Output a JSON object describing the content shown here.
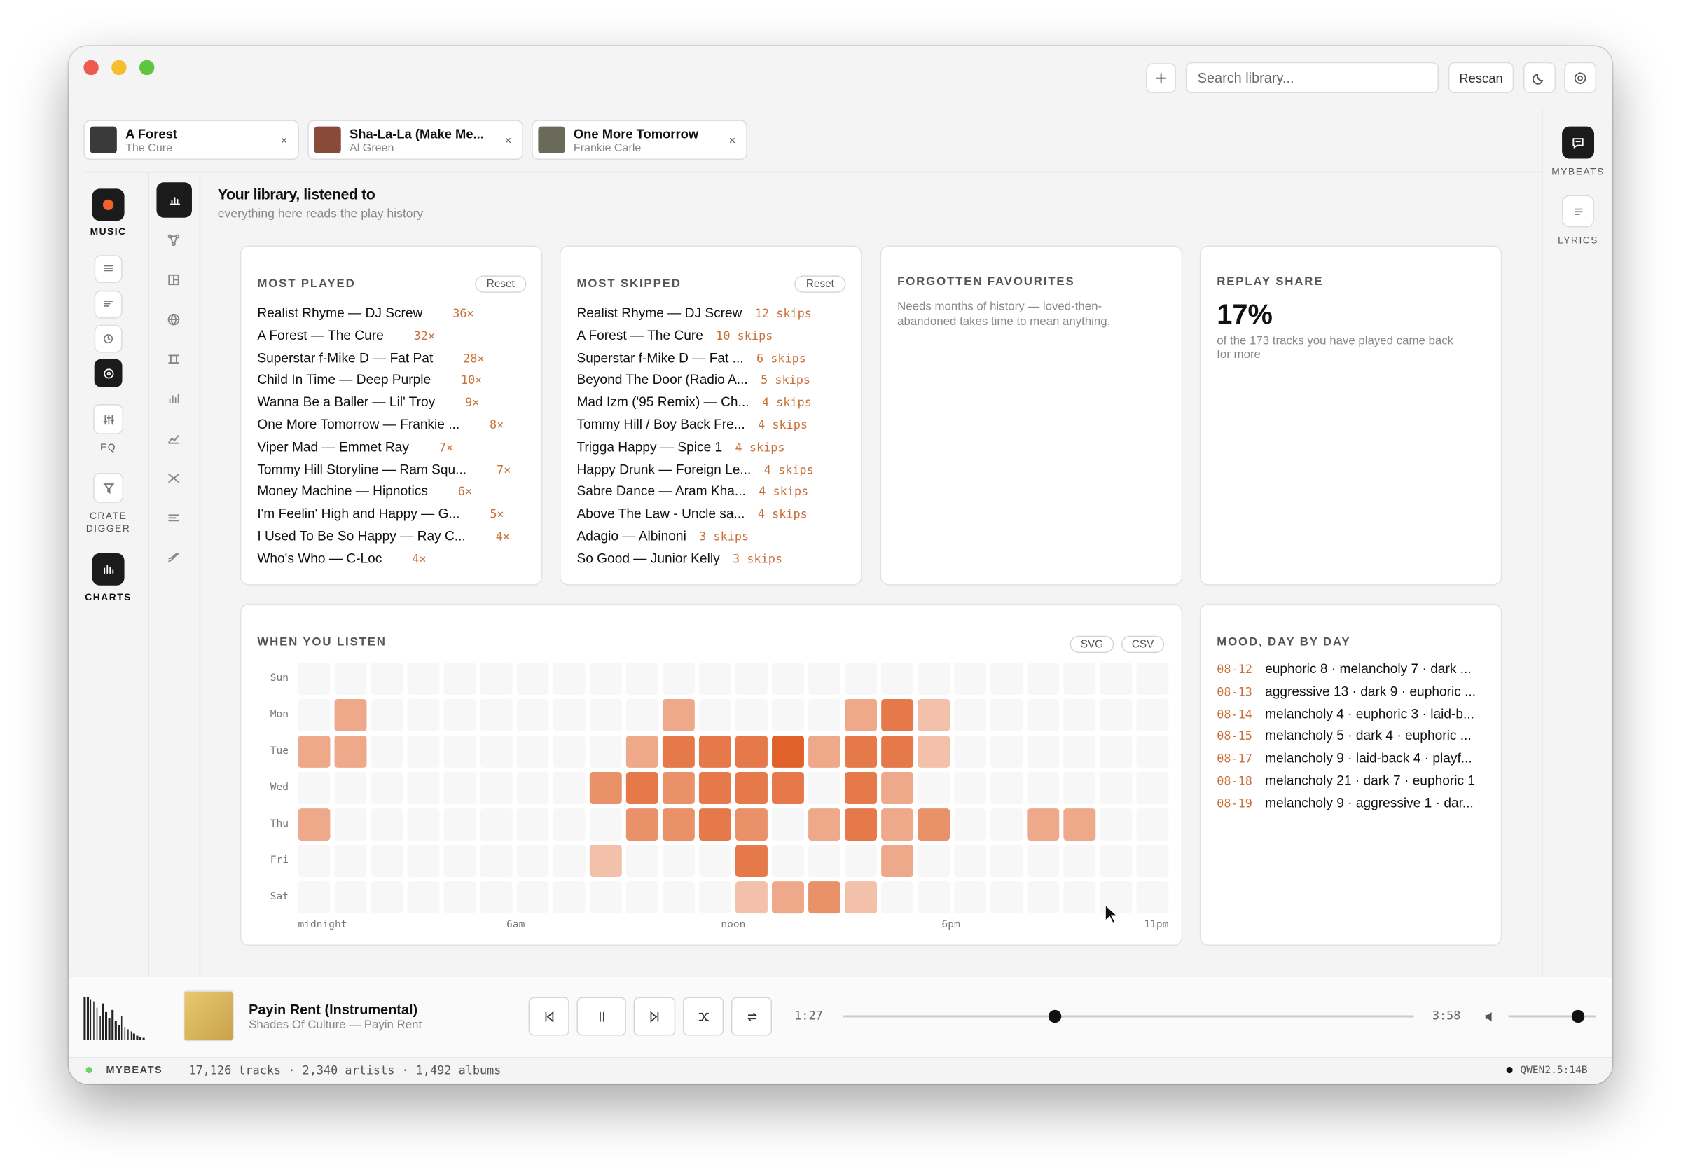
{
  "toolbar": {
    "search_placeholder": "Search library...",
    "rescan": "Rescan"
  },
  "tabs": [
    {
      "title": "A Forest",
      "subtitle": "The Cure"
    },
    {
      "title": "Sha-La-La (Make Me...",
      "subtitle": "Al Green"
    },
    {
      "title": "One More Tomorrow",
      "subtitle": "Frankie Carle"
    }
  ],
  "left_nav": {
    "music": "MUSIC",
    "eq": "EQ",
    "crate_digger": [
      "CRATE",
      "DIGGER"
    ],
    "charts": "CHARTS"
  },
  "right_nav": {
    "mybeats": "MYBEATS",
    "lyrics": "LYRICS"
  },
  "header": {
    "title": "Your library, listened to",
    "subtitle": "everything here reads the play history"
  },
  "most_played": {
    "title": "MOST PLAYED",
    "button": "Reset",
    "items": [
      {
        "name": "Realist Rhyme — DJ Screw",
        "count": "36×"
      },
      {
        "name": "A Forest — The Cure",
        "count": "32×"
      },
      {
        "name": "Superstar f-Mike D — Fat Pat",
        "count": "28×"
      },
      {
        "name": "Child In Time — Deep Purple",
        "count": "10×"
      },
      {
        "name": "Wanna Be a Baller — Lil' Troy",
        "count": "9×"
      },
      {
        "name": "One More Tomorrow — Frankie ...",
        "count": "8×"
      },
      {
        "name": "Viper Mad — Emmet Ray",
        "count": "7×"
      },
      {
        "name": "Tommy Hill Storyline — Ram Squ...",
        "count": "7×"
      },
      {
        "name": "Money Machine — Hipnotics",
        "count": "6×"
      },
      {
        "name": "I'm Feelin' High and Happy — G...",
        "count": "5×"
      },
      {
        "name": "I Used To Be So Happy — Ray C...",
        "count": "4×"
      },
      {
        "name": "Who's Who — C-Loc",
        "count": "4×"
      }
    ]
  },
  "most_skipped": {
    "title": "MOST SKIPPED",
    "button": "Reset",
    "items": [
      {
        "name": "Realist Rhyme — DJ Screw",
        "count": "12 skips"
      },
      {
        "name": "A Forest — The Cure",
        "count": "10 skips"
      },
      {
        "name": "Superstar f-Mike D — Fat ...",
        "count": "6 skips"
      },
      {
        "name": "Beyond The Door (Radio A...",
        "count": "5 skips"
      },
      {
        "name": "Mad Izm ('95 Remix) — Ch...",
        "count": "4 skips"
      },
      {
        "name": "Tommy Hill / Boy Back Fre...",
        "count": "4 skips"
      },
      {
        "name": "Trigga Happy — Spice 1",
        "count": "4 skips"
      },
      {
        "name": "Happy Drunk — Foreign Le...",
        "count": "4 skips"
      },
      {
        "name": "Sabre Dance — Aram Kha...",
        "count": "4 skips"
      },
      {
        "name": "Above The Law - Uncle sa...",
        "count": "4 skips"
      },
      {
        "name": "Adagio — Albinoni",
        "count": "3 skips"
      },
      {
        "name": "So Good — Junior Kelly",
        "count": "3 skips"
      }
    ]
  },
  "forgotten": {
    "title": "FORGOTTEN FAVOURITES",
    "text": [
      "Needs months of history — loved-then-",
      "abandoned takes time to mean anything."
    ]
  },
  "replay_share": {
    "title": "REPLAY SHARE",
    "value": "17%",
    "text": [
      "of the 173 tracks you have played came back",
      "for more"
    ]
  },
  "when_you_listen": {
    "title": "WHEN YOU LISTEN",
    "buttons": [
      "SVG",
      "CSV"
    ],
    "color": "#e0622a",
    "days": [
      "Sun",
      "Mon",
      "Tue",
      "Wed",
      "Thu",
      "Fri",
      "Sat"
    ],
    "hour_labels": [
      "midnight",
      "6am",
      "noon",
      "6pm",
      "11pm"
    ],
    "levels": [
      [
        0,
        0,
        0,
        0,
        0,
        0,
        0,
        0,
        0,
        0,
        0,
        0,
        0,
        0,
        0,
        0,
        0,
        0,
        0,
        0,
        0,
        0,
        0,
        0
      ],
      [
        0,
        2,
        0,
        0,
        0,
        0,
        0,
        0,
        0,
        0,
        2,
        0,
        0,
        0,
        0,
        2,
        4,
        1,
        0,
        0,
        0,
        0,
        0,
        0
      ],
      [
        2,
        2,
        0,
        0,
        0,
        0,
        0,
        0,
        0,
        2,
        4,
        4,
        4,
        5,
        2,
        4,
        4,
        1,
        0,
        0,
        0,
        0,
        0,
        0
      ],
      [
        0,
        0,
        0,
        0,
        0,
        0,
        0,
        0,
        3,
        4,
        3,
        4,
        4,
        4,
        0,
        4,
        2,
        0,
        0,
        0,
        0,
        0,
        0,
        0
      ],
      [
        2,
        0,
        0,
        0,
        0,
        0,
        0,
        0,
        0,
        3,
        3,
        4,
        3,
        0,
        2,
        4,
        2,
        3,
        0,
        0,
        2,
        2,
        0,
        0
      ],
      [
        0,
        0,
        0,
        0,
        0,
        0,
        0,
        0,
        1,
        0,
        0,
        0,
        4,
        0,
        0,
        0,
        2,
        0,
        0,
        0,
        0,
        0,
        0,
        0
      ],
      [
        0,
        0,
        0,
        0,
        0,
        0,
        0,
        0,
        0,
        0,
        0,
        0,
        1,
        2,
        3,
        1,
        0,
        0,
        0,
        0,
        0,
        0,
        0,
        0
      ]
    ],
    "max_level": 5
  },
  "mood": {
    "title": "MOOD, DAY BY DAY",
    "items": [
      {
        "date": "08-12",
        "text": "euphoric 8 · melancholy 7 · dark ..."
      },
      {
        "date": "08-13",
        "text": "aggressive 13 · dark 9 · euphoric ..."
      },
      {
        "date": "08-14",
        "text": "melancholy 4 · euphoric 3 · laid-b..."
      },
      {
        "date": "08-15",
        "text": "melancholy 5 · dark 4 · euphoric ..."
      },
      {
        "date": "08-17",
        "text": "melancholy 9 · laid-back 4 · playf..."
      },
      {
        "date": "08-18",
        "text": "melancholy 21 · dark 7 · euphoric 1"
      },
      {
        "date": "08-19",
        "text": "melancholy 9 · aggressive 1 · dar..."
      }
    ]
  },
  "player": {
    "title": "Payin Rent (Instrumental)",
    "subtitle": "Shades Of Culture — Payin Rent",
    "elapsed": "1:27",
    "duration": "3:58"
  },
  "status": {
    "app": "MYBEATS",
    "stats": "17,126 tracks · 2,340 artists · 1,492 albums",
    "model": "QWEN2.5:14B"
  }
}
